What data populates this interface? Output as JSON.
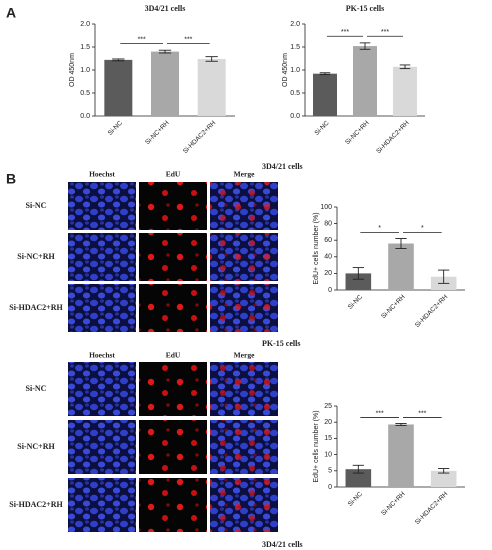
{
  "panel_labels": [
    "A",
    "B"
  ],
  "image_grids": [
    {
      "caption": "3D4/21 cells",
      "columns": [
        "Hoechst",
        "EdU",
        "Merge"
      ],
      "rows": [
        "Si-NC",
        "Si-NC+RH",
        "Si-HDAC2+RH"
      ]
    },
    {
      "caption": "PK-15 cells",
      "columns": [
        "Hoechst",
        "EdU",
        "Merge"
      ],
      "rows": [
        "Si-NC",
        "Si-NC+RH",
        "Si-HDAC2+RH"
      ]
    }
  ],
  "footer": "3D4/21 cells",
  "chart_data": [
    {
      "type": "bar",
      "title": "3D4/21 cells",
      "y_label": "OD 450nm",
      "categories": [
        "Si-NC",
        "Si-NC+RH",
        "Si-HDAC2+RH"
      ],
      "values": [
        1.22,
        1.4,
        1.24
      ],
      "errors": [
        0.02,
        0.03,
        0.05
      ],
      "colors": [
        "#5b5b5b",
        "#a8a8a8",
        "#d9d9d9"
      ],
      "ylim": [
        0,
        2
      ],
      "yticks": [
        {
          "value": 0,
          "label": "0.0"
        },
        0.5,
        {
          "value": 1,
          "label": "1.0"
        },
        1.5,
        {
          "value": 2,
          "label": "2.0"
        }
      ],
      "annotations": [
        {
          "pair": [
            "Si-NC",
            "Si-NC+RH"
          ],
          "label": "***"
        },
        {
          "pair": [
            "Si-NC+RH",
            "Si-HDAC2+RH"
          ],
          "label": "***"
        }
      ]
    },
    {
      "type": "bar",
      "title": "PK-15 cells",
      "y_label": "OD 450nm",
      "categories": [
        "Si-NC",
        "Si-NC+RH",
        "Si-HDAC2+RH"
      ],
      "values": [
        0.92,
        1.52,
        1.07
      ],
      "errors": [
        0.02,
        0.07,
        0.04
      ],
      "colors": [
        "#5b5b5b",
        "#a8a8a8",
        "#d9d9d9"
      ],
      "ylim": [
        0,
        2
      ],
      "yticks": [
        {
          "value": 0,
          "label": "0.0"
        },
        0.5,
        {
          "value": 1,
          "label": "1.0"
        },
        1.5,
        {
          "value": 2,
          "label": "2.0"
        }
      ],
      "annotations": [
        {
          "pair": [
            "Si-NC",
            "Si-NC+RH"
          ],
          "label": "***"
        },
        {
          "pair": [
            "Si-NC+RH",
            "Si-HDAC2+RH"
          ],
          "label": "***"
        }
      ]
    },
    {
      "type": "bar",
      "y_label": "EdU+ cells number (%)",
      "categories": [
        "Si-NC",
        "Si-NC+RH",
        "Si-HDAC2+RH"
      ],
      "values": [
        20,
        56,
        16
      ],
      "errors": [
        7,
        6,
        8
      ],
      "colors": [
        "#5b5b5b",
        "#a8a8a8",
        "#d9d9d9"
      ],
      "ylim": [
        0,
        100
      ],
      "yticks": [
        0,
        20,
        40,
        60,
        80,
        100
      ],
      "annotations": [
        {
          "pair": [
            "Si-NC",
            "Si-NC+RH"
          ],
          "label": "*"
        },
        {
          "pair": [
            "Si-NC+RH",
            "Si-HDAC2+RH"
          ],
          "label": "*"
        }
      ]
    },
    {
      "type": "bar",
      "y_label": "EdU+ cells number (%)",
      "categories": [
        "Si-NC",
        "Si-NC+RH",
        "Si-HDAC2+RH"
      ],
      "values": [
        5.5,
        19.3,
        5
      ],
      "errors": [
        1.2,
        0.3,
        0.7
      ],
      "colors": [
        "#5b5b5b",
        "#a8a8a8",
        "#d9d9d9"
      ],
      "ylim": [
        0,
        25
      ],
      "yticks": [
        0,
        5,
        10,
        15,
        20,
        25
      ],
      "annotations": [
        {
          "pair": [
            "Si-NC",
            "Si-NC+RH"
          ],
          "label": "***"
        },
        {
          "pair": [
            "Si-NC+RH",
            "Si-HDAC2+RH"
          ],
          "label": "***"
        }
      ]
    }
  ]
}
